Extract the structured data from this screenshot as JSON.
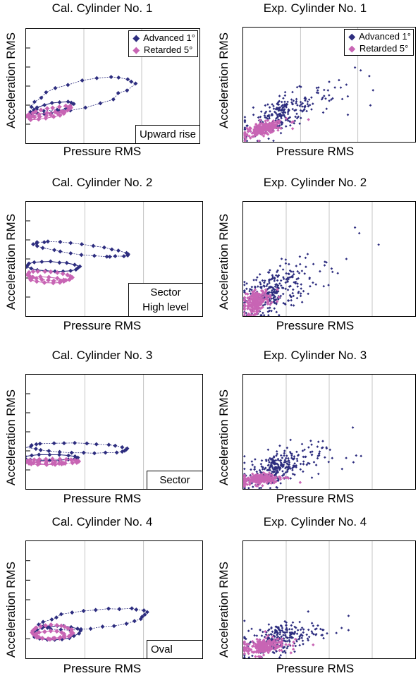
{
  "colors": {
    "advanced": "#2d2d7f",
    "retarded": "#c865b4"
  },
  "chart_data": [
    {
      "id": "cal1",
      "type": "line",
      "title": "Cal. Cylinder No. 1",
      "xlabel": "Pressure RMS",
      "ylabel": "Acceleration RMS",
      "xlim": [
        0,
        3
      ],
      "ylim": [
        0,
        6
      ],
      "xgrid": [
        1,
        2
      ],
      "ygrid": [
        1,
        2,
        3,
        4,
        5
      ],
      "grid": true,
      "legend": {
        "position": "top-right",
        "entries": [
          "Advanced 1°",
          "Retarded 5°"
        ]
      },
      "annotation": [
        "Upward rise"
      ],
      "series": [
        {
          "name": "Advanced 1°",
          "loops": [
            {
              "cx": 1.0,
              "cy": 2.6,
              "rx": 1.1,
              "ry": 0.55,
              "rot": 45,
              "n": 22,
              "spread": 0.08
            },
            {
              "cx": 0.45,
              "cy": 1.85,
              "rx": 0.45,
              "ry": 0.2,
              "rot": 40,
              "n": 16,
              "spread": 0.05
            }
          ]
        },
        {
          "name": "Retarded 5°",
          "loops": [
            {
              "cx": 0.4,
              "cy": 1.65,
              "rx": 0.45,
              "ry": 0.15,
              "rot": 35,
              "n": 22,
              "spread": 0.06
            },
            {
              "cx": 0.35,
              "cy": 1.45,
              "rx": 0.35,
              "ry": 0.12,
              "rot": 30,
              "n": 14,
              "spread": 0.05
            }
          ]
        }
      ]
    },
    {
      "id": "exp1",
      "type": "scatter",
      "title": "Exp. Cylinder No. 1",
      "xlabel": "Pressure RMS",
      "ylabel": "Acceleration RMS",
      "xlim": [
        0,
        3
      ],
      "ylim": [
        0,
        4
      ],
      "xgrid": [
        1,
        2
      ],
      "ygrid": [
        1,
        2,
        3
      ],
      "grid": true,
      "legend": {
        "position": "top-right",
        "entries": [
          "Advanced 1°",
          "Retarded 5°"
        ]
      },
      "annotation": [],
      "series": [
        {
          "name": "Advanced 1°",
          "cloud": {
            "cx": 0.65,
            "cy": 0.95,
            "sx": 0.45,
            "sy": 0.45,
            "n": 260,
            "corr": 0.75
          },
          "outliers": [
            [
              2.05,
              2.5
            ],
            [
              1.95,
              2.6
            ],
            [
              2.2,
              2.3
            ],
            [
              1.8,
              2.0
            ],
            [
              1.6,
              1.9
            ],
            [
              1.5,
              2.1
            ],
            [
              1.3,
              1.8
            ]
          ]
        },
        {
          "name": "Retarded 5°",
          "cloud": {
            "cx": 0.35,
            "cy": 0.45,
            "sx": 0.18,
            "sy": 0.13,
            "n": 240,
            "corr": 0.6
          },
          "outliers": []
        }
      ]
    },
    {
      "id": "cal2",
      "type": "line",
      "title": "Cal. Cylinder No. 2",
      "xlabel": "Pressure RMS",
      "ylabel": "Acceleration RMS",
      "xlim": [
        0,
        3
      ],
      "ylim": [
        0,
        6
      ],
      "xgrid": [
        1,
        2
      ],
      "ygrid": [
        1,
        2,
        3,
        4,
        5
      ],
      "grid": true,
      "legend": null,
      "annotation": [
        "Sector",
        "High level"
      ],
      "series": [
        {
          "name": "Advanced 1°",
          "loops": [
            {
              "cx": 0.95,
              "cy": 3.5,
              "rx": 0.85,
              "ry": 0.25,
              "rot": -22,
              "n": 26,
              "spread": 0.06
            },
            {
              "cx": 0.45,
              "cy": 2.6,
              "rx": 0.45,
              "ry": 0.25,
              "rot": -10,
              "n": 18,
              "spread": 0.05
            }
          ]
        },
        {
          "name": "Retarded 5°",
          "loops": [
            {
              "cx": 0.4,
              "cy": 2.1,
              "rx": 0.4,
              "ry": 0.22,
              "rot": -20,
              "n": 22,
              "spread": 0.05
            },
            {
              "cx": 0.35,
              "cy": 1.9,
              "rx": 0.3,
              "ry": 0.15,
              "rot": -15,
              "n": 12,
              "spread": 0.04
            }
          ]
        }
      ]
    },
    {
      "id": "exp2",
      "type": "scatter",
      "title": "Exp. Cylinder No. 2",
      "xlabel": "Pressure RMS",
      "ylabel": "Acceleration RMS",
      "xlim": [
        0,
        4
      ],
      "ylim": [
        0,
        4
      ],
      "xgrid": [
        1,
        2,
        3
      ],
      "ygrid": [
        1,
        2,
        3
      ],
      "grid": true,
      "legend": null,
      "annotation": [],
      "series": [
        {
          "name": "Advanced 1°",
          "cloud": {
            "cx": 0.65,
            "cy": 0.85,
            "sx": 0.5,
            "sy": 0.5,
            "n": 300,
            "corr": 0.55
          },
          "outliers": [
            [
              2.6,
              3.1
            ],
            [
              2.7,
              2.9
            ],
            [
              3.15,
              2.5
            ],
            [
              2.4,
              2.0
            ],
            [
              2.2,
              1.5
            ],
            [
              1.9,
              1.9
            ]
          ]
        },
        {
          "name": "Retarded 5°",
          "cloud": {
            "cx": 0.3,
            "cy": 0.5,
            "sx": 0.15,
            "sy": 0.2,
            "n": 240,
            "corr": 0.4
          },
          "outliers": []
        }
      ]
    },
    {
      "id": "cal3",
      "type": "line",
      "title": "Cal. Cylinder No. 3",
      "xlabel": "Pressure RMS",
      "ylabel": "Acceleration RMS",
      "xlim": [
        0,
        3
      ],
      "ylim": [
        0,
        6
      ],
      "xgrid": [
        1,
        2
      ],
      "ygrid": [
        1,
        2,
        3,
        4,
        5
      ],
      "grid": true,
      "legend": null,
      "annotation": [
        "Sector"
      ],
      "series": [
        {
          "name": "Advanced 1°",
          "loops": [
            {
              "cx": 0.9,
              "cy": 2.15,
              "rx": 0.85,
              "ry": 0.25,
              "rot": -6,
              "n": 26,
              "spread": 0.05
            },
            {
              "cx": 0.4,
              "cy": 1.65,
              "rx": 0.45,
              "ry": 0.15,
              "rot": 0,
              "n": 16,
              "spread": 0.04
            }
          ]
        },
        {
          "name": "Retarded 5°",
          "loops": [
            {
              "cx": 0.45,
              "cy": 1.45,
              "rx": 0.45,
              "ry": 0.12,
              "rot": 0,
              "n": 24,
              "spread": 0.04
            },
            {
              "cx": 0.35,
              "cy": 1.35,
              "rx": 0.3,
              "ry": 0.08,
              "rot": 0,
              "n": 12,
              "spread": 0.03
            }
          ]
        }
      ]
    },
    {
      "id": "exp3",
      "type": "scatter",
      "title": "Exp. Cylinder No. 3",
      "xlabel": "Pressure RMS",
      "ylabel": "Acceleration RMS",
      "xlim": [
        0,
        4
      ],
      "ylim": [
        0,
        4
      ],
      "xgrid": [
        1,
        2,
        3
      ],
      "ygrid": [
        1,
        2,
        3
      ],
      "grid": true,
      "legend": null,
      "annotation": [],
      "series": [
        {
          "name": "Advanced 1°",
          "cloud": {
            "cx": 0.75,
            "cy": 0.7,
            "sx": 0.5,
            "sy": 0.35,
            "n": 300,
            "corr": 0.55
          },
          "outliers": [
            [
              2.55,
              2.15
            ],
            [
              1.75,
              1.65
            ],
            [
              1.85,
              1.45
            ],
            [
              2.3,
              0.7
            ],
            [
              1.6,
              1.2
            ]
          ]
        },
        {
          "name": "Retarded 5°",
          "cloud": {
            "cx": 0.4,
            "cy": 0.35,
            "sx": 0.25,
            "sy": 0.1,
            "n": 240,
            "corr": 0.3
          },
          "outliers": []
        }
      ]
    },
    {
      "id": "cal4",
      "type": "line",
      "title": "Cal. Cylinder No. 4",
      "xlabel": "Pressure RMS",
      "ylabel": "Acceleration RMS",
      "xlim": [
        0,
        3
      ],
      "ylim": [
        0,
        6
      ],
      "xgrid": [
        1,
        2
      ],
      "ygrid": [
        1,
        2,
        3,
        4,
        5
      ],
      "grid": true,
      "legend": null,
      "annotation": [
        "Oval"
      ],
      "series": [
        {
          "name": "Advanced 1°",
          "loops": [
            {
              "cx": 1.15,
              "cy": 2.0,
              "rx": 0.95,
              "ry": 0.45,
              "rot": 22,
              "n": 28,
              "spread": 0.06
            },
            {
              "cx": 0.5,
              "cy": 1.3,
              "rx": 0.4,
              "ry": 0.35,
              "rot": 30,
              "n": 18,
              "spread": 0.05
            }
          ]
        },
        {
          "name": "Retarded 5°",
          "loops": [
            {
              "cx": 0.45,
              "cy": 1.35,
              "rx": 0.35,
              "ry": 0.35,
              "rot": 20,
              "n": 24,
              "spread": 0.05
            },
            {
              "cx": 0.4,
              "cy": 1.2,
              "rx": 0.25,
              "ry": 0.2,
              "rot": 10,
              "n": 14,
              "spread": 0.04
            }
          ]
        }
      ]
    },
    {
      "id": "exp4",
      "type": "scatter",
      "title": "Exp. Cylinder No. 4",
      "xlabel": "Pressure RMS",
      "ylabel": "Acceleration RMS",
      "xlim": [
        0,
        4
      ],
      "ylim": [
        0,
        4
      ],
      "xgrid": [
        1,
        2,
        3
      ],
      "ygrid": [
        1,
        2,
        3
      ],
      "grid": true,
      "legend": null,
      "annotation": [],
      "series": [
        {
          "name": "Advanced 1°",
          "cloud": {
            "cx": 0.8,
            "cy": 0.65,
            "sx": 0.45,
            "sy": 0.3,
            "n": 260,
            "corr": 0.5
          },
          "outliers": [
            [
              2.45,
              1.45
            ],
            [
              1.6,
              1.2
            ],
            [
              1.8,
              1.0
            ],
            [
              1.95,
              0.85
            ]
          ]
        },
        {
          "name": "Retarded 5°",
          "cloud": {
            "cx": 0.45,
            "cy": 0.4,
            "sx": 0.25,
            "sy": 0.15,
            "n": 240,
            "corr": 0.4
          },
          "outliers": []
        }
      ]
    }
  ]
}
